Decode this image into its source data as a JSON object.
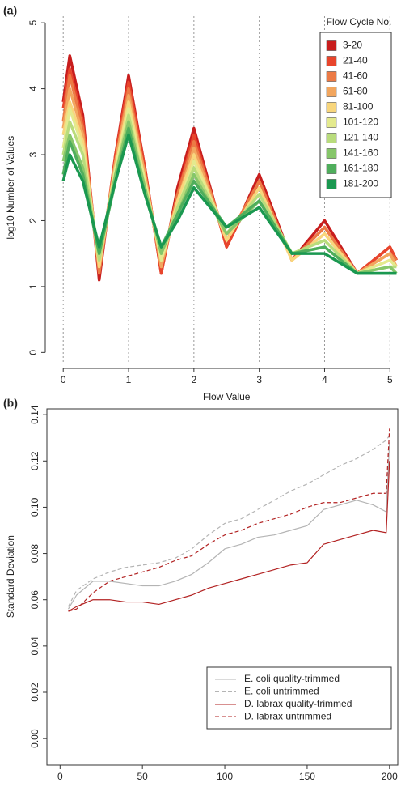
{
  "chart_data": [
    {
      "type": "line",
      "panel_label": "(a)",
      "x_label": "Flow Value",
      "y_label": "log10 Number of Values",
      "legend_title": "Flow Cycle No.",
      "legend": "top-right",
      "xgrid": true,
      "frame": false,
      "line_width": 3.5,
      "xlim": [
        -0.25,
        5.12
      ],
      "ylim": [
        -0.18,
        5.1
      ],
      "xticks": [
        0,
        1,
        2,
        3,
        4,
        5
      ],
      "yticks": [
        0,
        1,
        2,
        3,
        4,
        5
      ],
      "x": [
        0,
        0.1,
        0.3,
        0.55,
        0.8,
        1,
        1.25,
        1.5,
        1.75,
        2,
        2.5,
        3,
        3.5,
        4,
        4.5,
        5,
        5.1
      ],
      "series": [
        {
          "name": "3-20",
          "color": "#c81d1d",
          "values": [
            3.8,
            4.5,
            3.6,
            1.1,
            3.0,
            4.2,
            2.8,
            1.2,
            2.5,
            3.4,
            1.6,
            2.7,
            1.4,
            2.0,
            1.2,
            1.6,
            1.4
          ]
        },
        {
          "name": "21-40",
          "color": "#e8452c",
          "values": [
            3.7,
            4.3,
            3.5,
            1.2,
            3.0,
            4.1,
            2.8,
            1.2,
            2.4,
            3.3,
            1.6,
            2.6,
            1.4,
            1.9,
            1.2,
            1.6,
            1.4
          ]
        },
        {
          "name": "41-60",
          "color": "#ec7a45",
          "values": [
            3.5,
            4.2,
            3.4,
            1.2,
            2.9,
            4.0,
            2.7,
            1.3,
            2.4,
            3.2,
            1.7,
            2.6,
            1.4,
            1.9,
            1.2,
            1.5,
            1.4
          ]
        },
        {
          "name": "61-80",
          "color": "#f2a65e",
          "values": [
            3.4,
            4.0,
            3.3,
            1.3,
            2.9,
            3.9,
            2.7,
            1.3,
            2.3,
            3.1,
            1.7,
            2.5,
            1.4,
            1.8,
            1.2,
            1.5,
            1.3
          ]
        },
        {
          "name": "81-100",
          "color": "#f8d67c",
          "values": [
            3.3,
            3.8,
            3.2,
            1.3,
            2.8,
            3.8,
            2.6,
            1.4,
            2.3,
            3.0,
            1.7,
            2.5,
            1.4,
            1.8,
            1.2,
            1.4,
            1.3
          ]
        },
        {
          "name": "101-120",
          "color": "#e4ea8e",
          "values": [
            3.1,
            3.7,
            3.1,
            1.4,
            2.8,
            3.7,
            2.6,
            1.4,
            2.2,
            2.9,
            1.8,
            2.4,
            1.5,
            1.7,
            1.2,
            1.4,
            1.3
          ]
        },
        {
          "name": "121-140",
          "color": "#b9dc7c",
          "values": [
            3.0,
            3.5,
            3.0,
            1.4,
            2.7,
            3.6,
            2.5,
            1.5,
            2.2,
            2.8,
            1.8,
            2.4,
            1.5,
            1.7,
            1.2,
            1.3,
            1.3
          ]
        },
        {
          "name": "141-160",
          "color": "#86c66a",
          "values": [
            2.9,
            3.3,
            2.8,
            1.5,
            2.7,
            3.5,
            2.5,
            1.5,
            2.1,
            2.7,
            1.8,
            2.3,
            1.5,
            1.6,
            1.2,
            1.3,
            1.2
          ]
        },
        {
          "name": "161-180",
          "color": "#4fae5c",
          "values": [
            2.7,
            3.2,
            2.7,
            1.5,
            2.6,
            3.4,
            2.4,
            1.6,
            2.1,
            2.6,
            1.9,
            2.3,
            1.5,
            1.6,
            1.2,
            1.2,
            1.2
          ]
        },
        {
          "name": "181-200",
          "color": "#1a9850",
          "values": [
            2.6,
            3.0,
            2.6,
            1.6,
            2.6,
            3.3,
            2.4,
            1.6,
            2.0,
            2.5,
            1.9,
            2.2,
            1.5,
            1.5,
            1.2,
            1.2,
            1.2
          ]
        }
      ]
    },
    {
      "type": "line",
      "panel_label": "(b)",
      "x_label": "Flow Cycle",
      "y_label": "Standard Deviation",
      "legend": "bottom-right",
      "xgrid": false,
      "frame": true,
      "line_width": 1.2,
      "xlim": [
        -8,
        205
      ],
      "ylim": [
        -0.0115,
        0.1425
      ],
      "xticks": [
        0,
        50,
        100,
        150,
        200
      ],
      "yticks": [
        {
          "value": 0,
          "label": "0.00"
        },
        {
          "value": 0.02,
          "label": "0.02"
        },
        {
          "value": 0.04,
          "label": "0.04"
        },
        {
          "value": 0.06,
          "label": "0.06"
        },
        {
          "value": 0.08,
          "label": "0.08"
        },
        {
          "value": 0.1,
          "label": "0.10"
        },
        {
          "value": 0.12,
          "label": "0.12"
        },
        {
          "value": 0.14,
          "label": "0.14"
        }
      ],
      "x": [
        5,
        10,
        20,
        30,
        40,
        50,
        60,
        70,
        80,
        90,
        100,
        110,
        120,
        130,
        140,
        150,
        160,
        170,
        180,
        190,
        198,
        200
      ],
      "series": [
        {
          "name": "E. coli quality-trimmed",
          "color": "#b4b4b4",
          "dashed": false,
          "values": [
            0.056,
            0.062,
            0.068,
            0.068,
            0.067,
            0.066,
            0.066,
            0.068,
            0.071,
            0.076,
            0.082,
            0.084,
            0.087,
            0.088,
            0.09,
            0.092,
            0.099,
            0.101,
            0.103,
            0.101,
            0.098,
            0.128
          ]
        },
        {
          "name": "E. coli untrimmed",
          "color": "#b4b4b4",
          "dashed": true,
          "values": [
            0.057,
            0.064,
            0.069,
            0.072,
            0.074,
            0.075,
            0.076,
            0.078,
            0.082,
            0.088,
            0.093,
            0.095,
            0.099,
            0.103,
            0.107,
            0.11,
            0.114,
            0.118,
            0.121,
            0.125,
            0.129,
            0.131
          ]
        },
        {
          "name": "D. labrax quality-trimmed",
          "color": "#b22222",
          "dashed": false,
          "values": [
            0.055,
            0.057,
            0.06,
            0.06,
            0.059,
            0.059,
            0.058,
            0.06,
            0.062,
            0.065,
            0.067,
            0.069,
            0.071,
            0.073,
            0.075,
            0.076,
            0.084,
            0.086,
            0.088,
            0.09,
            0.089,
            0.12
          ]
        },
        {
          "name": "D. labrax untrimmed",
          "color": "#b22222",
          "dashed": true,
          "values": [
            0.055,
            0.056,
            0.063,
            0.068,
            0.07,
            0.072,
            0.074,
            0.077,
            0.079,
            0.084,
            0.088,
            0.09,
            0.093,
            0.095,
            0.097,
            0.1,
            0.102,
            0.102,
            0.104,
            0.106,
            0.106,
            0.134
          ]
        }
      ]
    }
  ]
}
